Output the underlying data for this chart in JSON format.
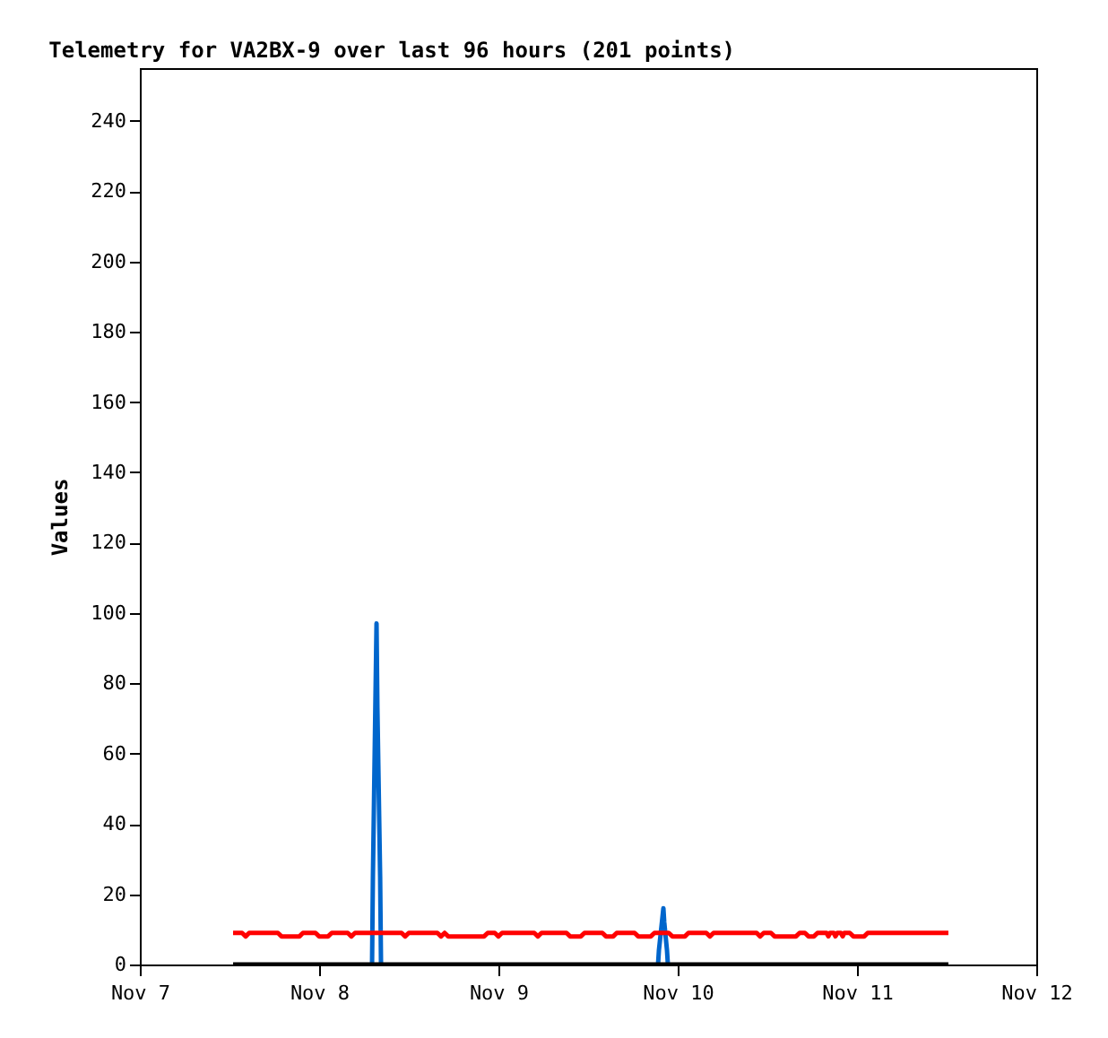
{
  "chart_data": {
    "type": "line",
    "title": "Telemetry for VA2BX-9 over last 96 hours (201 points)",
    "ylabel": "Values",
    "xlim": [
      "--11-07",
      "--11-12"
    ],
    "xticks": [
      {
        "value": "--11-07",
        "label": "Nov 7"
      },
      {
        "value": "--11-08",
        "label": "Nov 8"
      },
      {
        "value": "--11-09",
        "label": "Nov 9"
      },
      {
        "value": "--11-10",
        "label": "Nov 10"
      },
      {
        "value": "--11-11",
        "label": "Nov 11"
      },
      {
        "value": "--11-12",
        "label": "Nov 12"
      }
    ],
    "ylim": [
      0,
      255
    ],
    "yticks": [
      0,
      20,
      40,
      60,
      80,
      100,
      120,
      140,
      160,
      180,
      200,
      220,
      240
    ],
    "series": [
      {
        "color": "#0066cc",
        "x": [
          "--11-08T07:05",
          "--11-08T07:12",
          "--11-08T07:41",
          "--11-08T07:48",
          "--11-08T08:10",
          "--11-08T08:17",
          "--11-09T00:00",
          "--11-09T21:22",
          "--11-09T21:29",
          "--11-09T22:05",
          "--11-09T22:12",
          "--11-09T22:34",
          "--11-09T22:41"
        ],
        "values": [
          0,
          25,
          97,
          73,
          25,
          0,
          null,
          0,
          4,
          16,
          12,
          4,
          0
        ]
      },
      {
        "color": "#ff0000",
        "x": [
          "--11-07T12:29",
          "--11-07T13:41",
          "--11-07T14:10",
          "--11-07T14:38",
          "--11-07T18:29",
          "--11-07T18:58",
          "--11-07T21:22",
          "--11-07T21:50",
          "--11-07T23:31",
          "--11-08T00:00",
          "--11-08T01:12",
          "--11-08T01:41",
          "--11-08T03:50",
          "--11-08T04:19",
          "--11-08T04:48",
          "--11-08T11:02",
          "--11-08T11:31",
          "--11-08T12:00",
          "--11-08T15:50",
          "--11-08T16:19",
          "--11-08T16:48",
          "--11-08T17:17",
          "--11-08T22:05",
          "--11-08T22:34",
          "--11-08T23:31",
          "--11-09T00:00",
          "--11-09T00:29",
          "--11-09T04:48",
          "--11-09T05:17",
          "--11-09T05:46",
          "--11-09T09:07",
          "--11-09T09:36",
          "--11-09T11:02",
          "--11-09T11:31",
          "--11-09T13:55",
          "--11-09T14:24",
          "--11-09T15:22",
          "--11-09T15:50",
          "--11-09T18:14",
          "--11-09T18:43",
          "--11-09T20:24",
          "--11-09T20:53",
          "--11-09T22:48",
          "--11-09T23:17",
          "--11-10T00:58",
          "--11-10T01:26",
          "--11-10T03:50",
          "--11-10T04:19",
          "--11-10T04:48",
          "--11-10T10:34",
          "--11-10T11:02",
          "--11-10T11:31",
          "--11-10T12:29",
          "--11-10T12:58",
          "--11-10T15:50",
          "--11-10T16:19",
          "--11-10T17:02",
          "--11-10T17:31",
          "--11-10T18:14",
          "--11-10T18:43",
          "--11-10T19:55",
          "--11-10T20:10",
          "--11-10T20:24",
          "--11-10T20:53",
          "--11-10T21:07",
          "--11-10T21:22",
          "--11-10T21:50",
          "--11-10T22:05",
          "--11-10T22:19",
          "--11-10T23:02",
          "--11-10T23:31",
          "--11-11T00:58",
          "--11-11T01:26",
          "--11-11T12:14"
        ],
        "values": [
          9,
          9,
          8,
          9,
          9,
          8,
          8,
          9,
          9,
          8,
          8,
          9,
          9,
          8,
          9,
          9,
          8,
          9,
          9,
          8,
          9,
          8,
          8,
          9,
          9,
          8,
          9,
          9,
          8,
          9,
          9,
          8,
          8,
          9,
          9,
          8,
          8,
          9,
          9,
          8,
          8,
          9,
          9,
          8,
          8,
          9,
          9,
          8,
          9,
          9,
          8,
          9,
          9,
          8,
          8,
          9,
          9,
          8,
          8,
          9,
          9,
          8,
          9,
          9,
          8,
          9,
          9,
          8,
          9,
          9,
          8,
          8,
          9,
          9
        ]
      },
      {
        "color": "#000000",
        "x": [
          "--11-07T12:29",
          "--11-11T12:14"
        ],
        "values": [
          0,
          0
        ]
      }
    ]
  }
}
